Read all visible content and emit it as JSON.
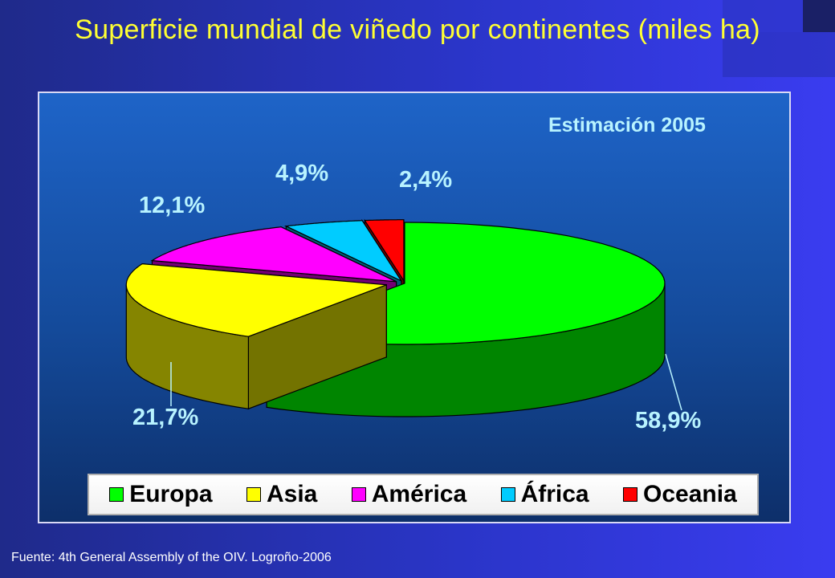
{
  "header": {
    "title": "Superficie mundial de viñedo por continentes (miles ha)"
  },
  "footer": {
    "source": "Fuente: 4th General Assembly of the OIV. Logroño-2006"
  },
  "chart_data": {
    "type": "pie",
    "subtitle": "Estimación 2005",
    "legend_position": "bottom",
    "categories": [
      "Europa",
      "Asia",
      "América",
      "África",
      "Oceania"
    ],
    "values": [
      58.9,
      21.7,
      12.1,
      4.9,
      2.4
    ],
    "labels": [
      "58,9%",
      "21,7%",
      "12,1%",
      "4,9%",
      "2,4%"
    ],
    "colors": [
      "#00ff00",
      "#ffff00",
      "#ff00ff",
      "#00ccff",
      "#ff0000"
    ]
  },
  "colors": {
    "background": "#2a35c8",
    "title": "#ffff33",
    "data_label": "#b8f3ff"
  }
}
